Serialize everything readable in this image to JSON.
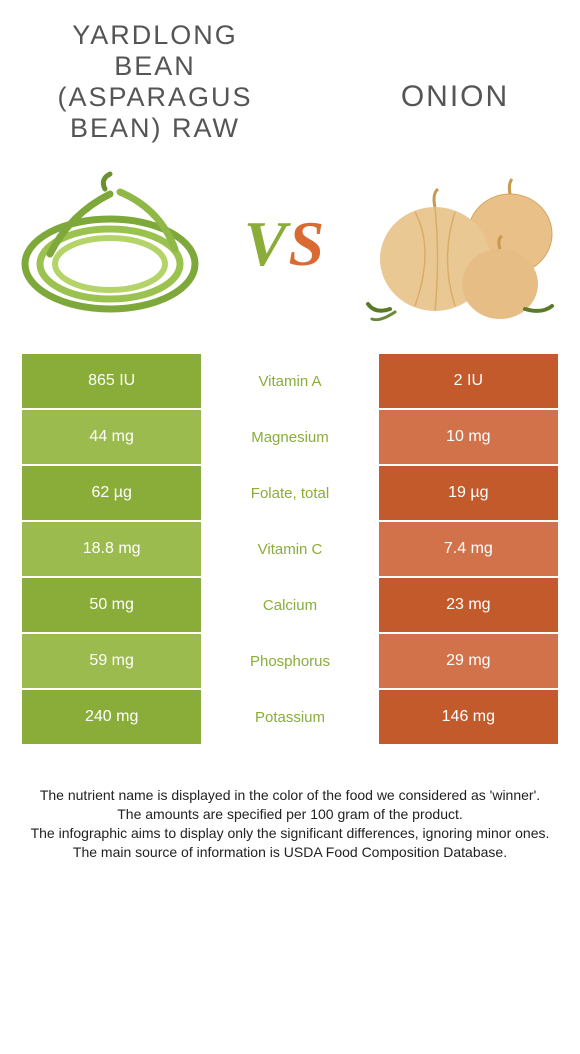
{
  "colors": {
    "left": "#8aad3a",
    "left_alt": "#9cbb4e",
    "right": "#c35a2c",
    "right_alt": "#d2724a",
    "winner_text": "#8aad3a"
  },
  "title_left": "Yardlong bean (asparagus bean) raw",
  "title_right": "Onion",
  "vs": {
    "v": "V",
    "s": "S"
  },
  "rows": [
    {
      "nutrient": "Vitamin A",
      "left": "865 IU",
      "right": "2 IU",
      "winner": "left"
    },
    {
      "nutrient": "Magnesium",
      "left": "44 mg",
      "right": "10 mg",
      "winner": "left"
    },
    {
      "nutrient": "Folate, total",
      "left": "62 µg",
      "right": "19 µg",
      "winner": "left"
    },
    {
      "nutrient": "Vitamin C",
      "left": "18.8 mg",
      "right": "7.4 mg",
      "winner": "left"
    },
    {
      "nutrient": "Calcium",
      "left": "50 mg",
      "right": "23 mg",
      "winner": "left"
    },
    {
      "nutrient": "Phosphorus",
      "left": "59 mg",
      "right": "29 mg",
      "winner": "left"
    },
    {
      "nutrient": "Potassium",
      "left": "240 mg",
      "right": "146 mg",
      "winner": "left"
    }
  ],
  "footer": [
    "The nutrient name is displayed in the color of the food we considered as 'winner'.",
    "The amounts are specified per 100 gram of the product.",
    "The infographic aims to display only the significant differences, ignoring minor ones.",
    "The main source of information is USDA Food Composition Database."
  ]
}
